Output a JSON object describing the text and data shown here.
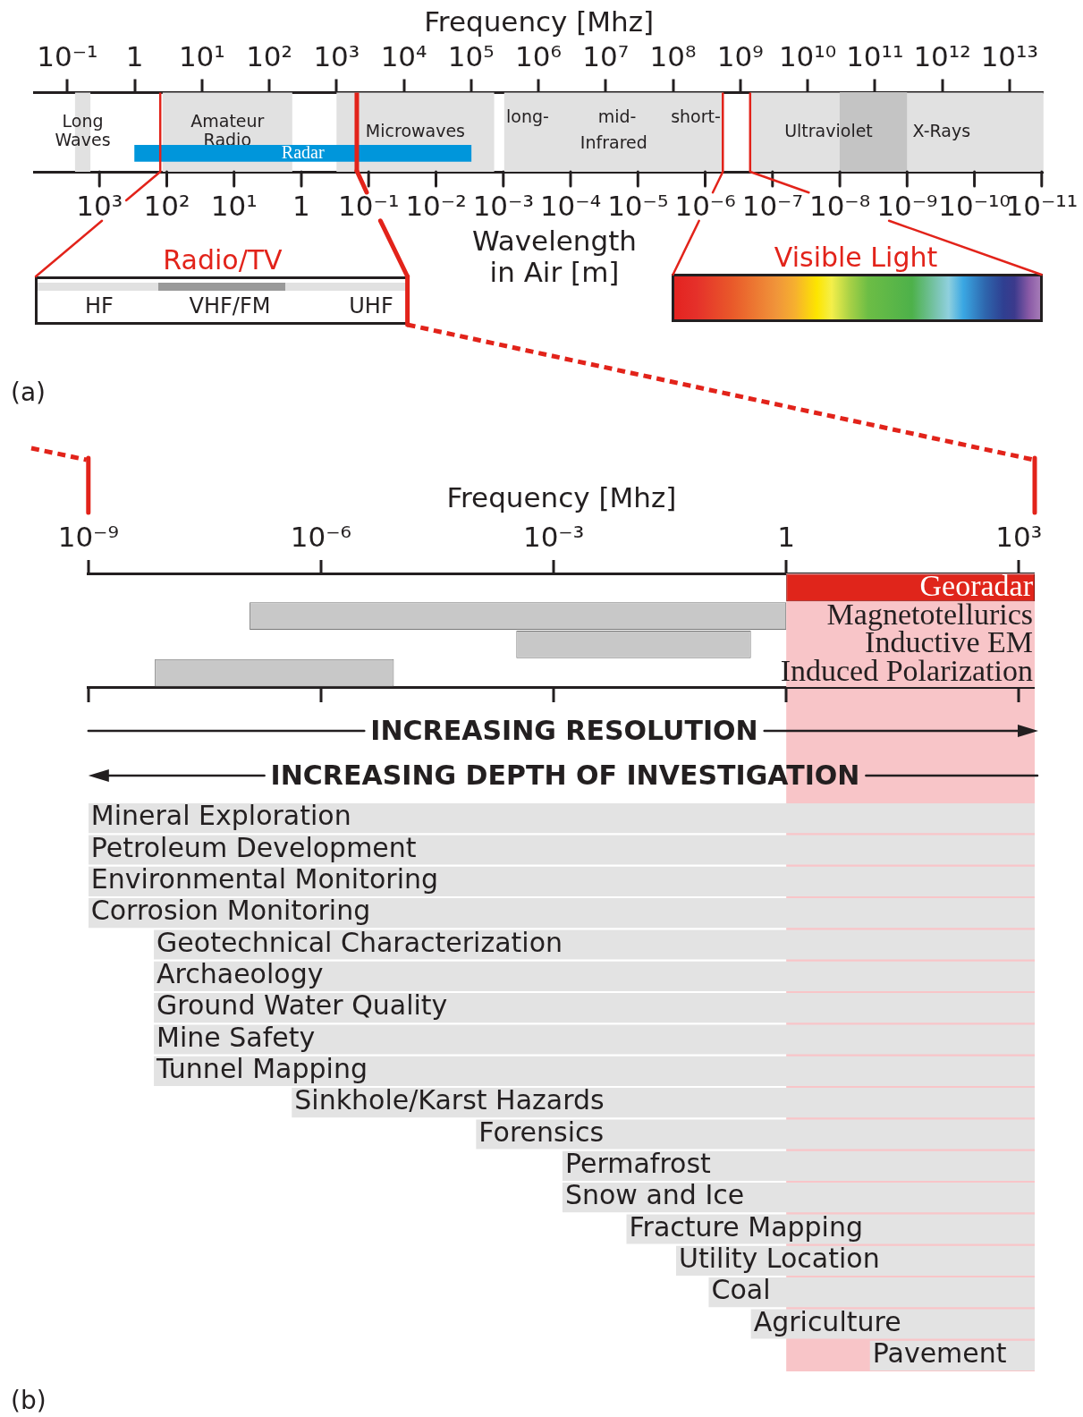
{
  "chart_data": [
    {
      "type": "bar",
      "orientation": "horizontal",
      "log": "x",
      "xlabel": "Frequency [Mhz]",
      "categories": [
        "Radar"
      ],
      "values": [
        100000
      ],
      "base": [
        1
      ],
      "color": "#0096db",
      "xlim": [
        0.0325,
        32000000000000
      ],
      "xticks": [
        {
          "value": 0.1,
          "label": "10⁻¹"
        },
        1,
        {
          "value": 10,
          "label": "10¹"
        },
        {
          "value": 100,
          "label": "10²"
        },
        {
          "value": 1000,
          "label": "10³"
        },
        {
          "value": 10000,
          "label": "10⁴"
        },
        {
          "value": 100000,
          "label": "10⁵"
        },
        {
          "value": 1000000,
          "label": "10⁶"
        },
        {
          "value": 10000000,
          "label": "10⁷"
        },
        {
          "value": 100000000,
          "label": "10⁸"
        },
        {
          "value": 1000000000,
          "label": "10⁹"
        },
        {
          "value": 10000000000,
          "label": "10¹⁰"
        },
        {
          "value": 100000000000,
          "label": "10¹¹"
        },
        {
          "value": 1000000000000,
          "label": "10¹²"
        },
        {
          "value": 10000000000000,
          "label": "10¹³"
        }
      ],
      "bands": [
        {
          "axis": "x",
          "from": 0.13,
          "to": 0.22,
          "label": "Long Waves",
          "color": "#e1e1e1"
        },
        {
          "axis": "x",
          "from": 2.6,
          "to": 220,
          "label": "Amateur Radio",
          "color": "#e1e1e1"
        },
        {
          "axis": "x",
          "from": 1000,
          "to": 220000,
          "label": "Microwaves",
          "color": "#e1e1e1"
        },
        {
          "axis": "x",
          "from": 310000,
          "to": 560000000,
          "label": "Infrared",
          "color": "#e1e1e1"
        },
        {
          "axis": "x",
          "from": 1400000000,
          "to": 300000000000,
          "label": "Ultraviolet",
          "color": "#e1e1e1"
        },
        {
          "axis": "x",
          "from": 30000000000,
          "to": 32000000000000,
          "label": "X-Rays",
          "color": "#e1e1e1"
        },
        {
          "axis": "x",
          "from": 30000000000,
          "to": 300000000000,
          "color": "#c4c4c4"
        }
      ],
      "ref_lines": [
        {
          "axis": "x",
          "value": 2.4,
          "color": "#e2231a"
        },
        {
          "axis": "x",
          "value": 2000,
          "color": "#e2231a"
        },
        {
          "axis": "x",
          "value": 550000000,
          "color": "#e2231a"
        },
        {
          "axis": "x",
          "value": 1400000000,
          "color": "#e2231a"
        }
      ],
      "annotations": [
        "long-",
        "mid-",
        "short-",
        "10³",
        "10²",
        "10¹",
        "1",
        "10⁻¹",
        "10⁻²",
        "10⁻³",
        "10⁻⁴",
        "10⁻⁵",
        "10⁻⁶",
        "10⁻⁷",
        "10⁻⁸",
        "10⁻⁹",
        "10⁻¹⁰",
        "10⁻¹¹",
        "Wavelength in Air [m]",
        "Radio/TV",
        "HF",
        "VHF/FM",
        "UHF",
        "Visible Light",
        "(a)"
      ]
    },
    {
      "type": "bar",
      "orientation": "horizontal",
      "log": "x",
      "xlabel": "Frequency [Mhz]",
      "categories": [
        "Georadar",
        "Magnetotellurics",
        "Inductive EM",
        "Induced Polarization"
      ],
      "values": [
        1599,
        1,
        0.35,
        8.7e-06
      ],
      "base": [
        1,
        1.2e-07,
        0.00033,
        7.2e-09
      ],
      "colors": [
        "#e0251b",
        "#c8c8c8",
        "#c8c8c8",
        "#c8c8c8"
      ],
      "xlim": [
        1e-09,
        1600
      ],
      "xticks": [
        {
          "value": 1e-09,
          "label": "10⁻⁹"
        },
        {
          "value": 1e-06,
          "label": "10⁻⁶"
        },
        {
          "value": 0.001,
          "label": "10⁻³"
        },
        1,
        {
          "value": 1000,
          "label": "10³"
        }
      ],
      "bands": [
        {
          "axis": "x",
          "from": 1,
          "to": 1600,
          "color": "#f8c5c8"
        }
      ]
    },
    {
      "type": "bar",
      "orientation": "horizontal",
      "log": "x",
      "categories": [
        "Mineral Exploration",
        "Petroleum Development",
        "Environmental Monitoring",
        "Corrosion Monitoring",
        "Geotechnical Characterization",
        "Archaeology",
        "Ground Water Quality",
        "Mine Safety",
        "Tunnel Mapping",
        "Sinkhole/Karst Hazards",
        "Forensics",
        "Permafrost",
        "Snow and Ice",
        "Fracture Mapping",
        "Utility Location",
        "Coal",
        "Agriculture",
        "Pavement"
      ],
      "values": [
        1599,
        1599,
        1599,
        1599,
        1599,
        1599,
        1599,
        1599,
        1599,
        1599,
        1599,
        1599,
        1599,
        1599,
        1599,
        1599,
        1599,
        1588
      ],
      "base": [
        1e-09,
        1e-09,
        1e-09,
        1e-09,
        7e-09,
        7e-09,
        7e-09,
        7e-09,
        7e-09,
        4.2e-07,
        0.0001,
        0.0013,
        0.0013,
        0.0087,
        0.038,
        0.1,
        0.35,
        12
      ],
      "color": "#e3e3e3",
      "xlim": [
        1e-09,
        1600
      ],
      "bands": [
        {
          "axis": "x",
          "from": 1,
          "to": 1600,
          "color": "#f8c5c8"
        }
      ],
      "annotations": [
        "INCREASING RESOLUTION",
        "INCREASING DEPTH OF INVESTIGATION",
        "(b)"
      ]
    }
  ]
}
